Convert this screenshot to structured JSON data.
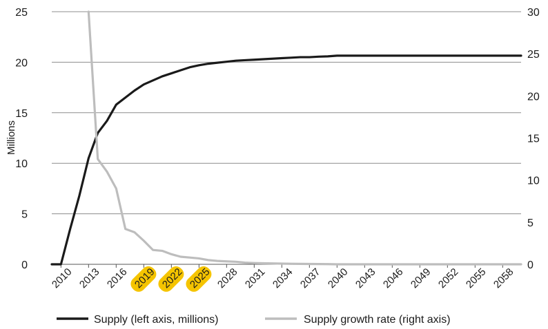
{
  "chart_data": {
    "type": "line",
    "title": "",
    "ylabel": "Millions",
    "ylabel_right": "",
    "ylim": [
      0,
      25
    ],
    "ylim_right": [
      0,
      30
    ],
    "yticks": [
      0,
      5,
      10,
      15,
      20,
      25
    ],
    "yticks_right": [
      0,
      5,
      10,
      15,
      20,
      25,
      30
    ],
    "xlim": [
      2009,
      2060
    ],
    "xtick_labels": [
      "2010",
      "2013",
      "2016",
      "2019",
      "2022",
      "2025",
      "2028",
      "2031",
      "2034",
      "2037",
      "2040",
      "2043",
      "2046",
      "2049",
      "2052",
      "2055",
      "2058"
    ],
    "highlighted_ticks": [
      "2019",
      "2022",
      "2025"
    ],
    "highlight_color": "#f5c400",
    "grid": "horizontal",
    "legend_position": "bottom",
    "series": [
      {
        "name": "Supply (left axis, millions)",
        "axis": "left",
        "color": "#1a1a1a",
        "x": [
          2009,
          2010,
          2011,
          2012,
          2013,
          2014,
          2015,
          2016,
          2017,
          2018,
          2019,
          2020,
          2021,
          2022,
          2023,
          2024,
          2025,
          2026,
          2027,
          2028,
          2029,
          2030,
          2031,
          2032,
          2033,
          2034,
          2035,
          2036,
          2037,
          2038,
          2039,
          2040,
          2045,
          2050,
          2055,
          2060
        ],
        "values": [
          0,
          0,
          3.5,
          6.8,
          10.5,
          13,
          14.2,
          15.8,
          16.5,
          17.2,
          17.8,
          18.2,
          18.6,
          18.9,
          19.2,
          19.5,
          19.7,
          19.85,
          19.95,
          20.05,
          20.15,
          20.2,
          20.25,
          20.3,
          20.35,
          20.4,
          20.45,
          20.5,
          20.5,
          20.55,
          20.58,
          20.65,
          20.65,
          20.65,
          20.65,
          20.65
        ]
      },
      {
        "name": "Supply growth rate (right axis)",
        "axis": "right",
        "color": "#bdbdbd",
        "x": [
          2013,
          2014,
          2015,
          2016,
          2017,
          2018,
          2019,
          2020,
          2021,
          2022,
          2023,
          2024,
          2025,
          2026,
          2027,
          2028,
          2029,
          2030,
          2031,
          2032,
          2033,
          2034,
          2035,
          2036,
          2037,
          2038,
          2039,
          2040,
          2045,
          2050,
          2055,
          2060
        ],
        "values": [
          30,
          12.5,
          11,
          9,
          4.2,
          3.8,
          2.8,
          1.7,
          1.6,
          1.2,
          0.9,
          0.8,
          0.7,
          0.5,
          0.4,
          0.35,
          0.3,
          0.2,
          0.15,
          0.12,
          0.1,
          0.08,
          0.06,
          0.05,
          0.04,
          0.03,
          0.02,
          0,
          0,
          0,
          0,
          0
        ]
      }
    ]
  }
}
